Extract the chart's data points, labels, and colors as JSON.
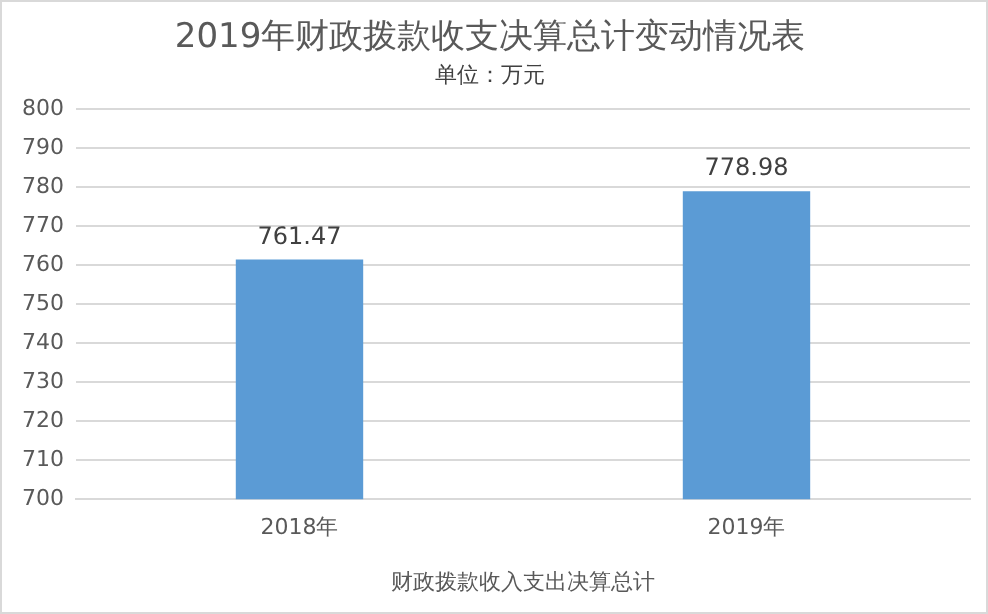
{
  "chart_data": {
    "type": "bar",
    "title": "2019年财政拨款收支决算总计变动情况表",
    "subtitle": "单位：万元",
    "xlabel": "财政拨款收入支出决算总计",
    "categories": [
      "2018年",
      "2019年"
    ],
    "values": [
      761.47,
      778.98
    ],
    "color": "#5b9bd5",
    "ylim": [
      700,
      800
    ],
    "yticks": [
      700,
      710,
      720,
      730,
      740,
      750,
      760,
      770,
      780,
      790,
      800
    ],
    "grid": "y",
    "data_labels": true
  }
}
